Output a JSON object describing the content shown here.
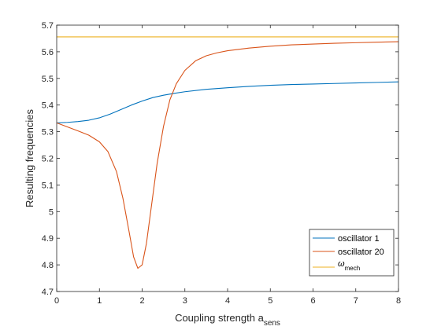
{
  "chart_data": {
    "type": "line",
    "xlabel": "Coupling strength a",
    "xlabel_sub": "sens",
    "ylabel": "Resulting frequencies",
    "xlim": [
      0,
      8
    ],
    "ylim": [
      4.7,
      5.7
    ],
    "xticks": [
      "0",
      "1",
      "2",
      "3",
      "4",
      "5",
      "6",
      "7",
      "8"
    ],
    "yticks": [
      "4.7",
      "4.8",
      "4.9",
      "5",
      "5.1",
      "5.2",
      "5.3",
      "5.4",
      "5.5",
      "5.6",
      "5.7"
    ],
    "grid": false,
    "legend_position": "bottom-right",
    "series": [
      {
        "name": "oscillator 1",
        "color": "#0072BD",
        "x": [
          0,
          0.25,
          0.5,
          0.75,
          1,
          1.25,
          1.5,
          1.75,
          2,
          2.25,
          2.5,
          2.75,
          3,
          3.5,
          4,
          4.5,
          5,
          5.5,
          6,
          6.5,
          7,
          7.5,
          8
        ],
        "y": [
          5.333,
          5.335,
          5.338,
          5.343,
          5.352,
          5.366,
          5.383,
          5.4,
          5.415,
          5.428,
          5.437,
          5.444,
          5.45,
          5.459,
          5.465,
          5.47,
          5.474,
          5.477,
          5.479,
          5.481,
          5.483,
          5.485,
          5.487
        ]
      },
      {
        "name": "oscillator 20",
        "color": "#D95319",
        "x": [
          0,
          0.25,
          0.5,
          0.75,
          1,
          1.2,
          1.4,
          1.55,
          1.7,
          1.8,
          1.9,
          2,
          2.1,
          2.2,
          2.35,
          2.5,
          2.65,
          2.8,
          3,
          3.25,
          3.5,
          3.75,
          4,
          4.5,
          5,
          5.5,
          6,
          6.5,
          7,
          7.5,
          8
        ],
        "y": [
          5.333,
          5.318,
          5.303,
          5.287,
          5.262,
          5.225,
          5.15,
          5.05,
          4.92,
          4.83,
          4.787,
          4.8,
          4.88,
          5.0,
          5.18,
          5.32,
          5.42,
          5.48,
          5.53,
          5.566,
          5.585,
          5.596,
          5.604,
          5.614,
          5.621,
          5.626,
          5.629,
          5.632,
          5.634,
          5.636,
          5.638
        ]
      },
      {
        "name": "ω",
        "name_sub": "mech",
        "color": "#EDB120",
        "x": [
          0,
          8
        ],
        "y": [
          5.656,
          5.656
        ]
      }
    ]
  }
}
